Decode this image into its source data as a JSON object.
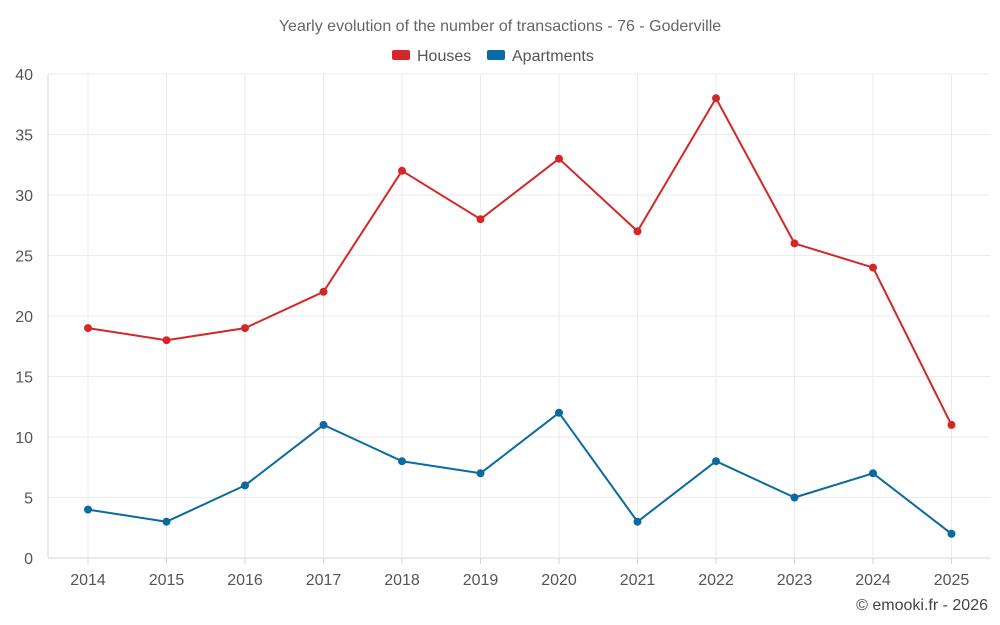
{
  "chart_data": {
    "type": "line",
    "title": "Yearly evolution of the number of transactions - 76 - Goderville",
    "categories": [
      "2014",
      "2015",
      "2016",
      "2017",
      "2018",
      "2019",
      "2020",
      "2021",
      "2022",
      "2023",
      "2024",
      "2025"
    ],
    "series": [
      {
        "name": "Houses",
        "color": "#d62728",
        "values": [
          19,
          18,
          19,
          22,
          32,
          28,
          33,
          27,
          38,
          26,
          24,
          11
        ]
      },
      {
        "name": "Apartments",
        "color": "#0a6aa1",
        "values": [
          4,
          3,
          6,
          11,
          8,
          7,
          12,
          3,
          8,
          5,
          7,
          2
        ]
      }
    ],
    "ylim": [
      0,
      40
    ],
    "yticks": [
      0,
      5,
      10,
      15,
      20,
      25,
      30,
      35,
      40
    ],
    "grid": true,
    "legend_position": "top-center",
    "xlabel": "",
    "ylabel": ""
  },
  "credit": "© emooki.fr - 2026"
}
